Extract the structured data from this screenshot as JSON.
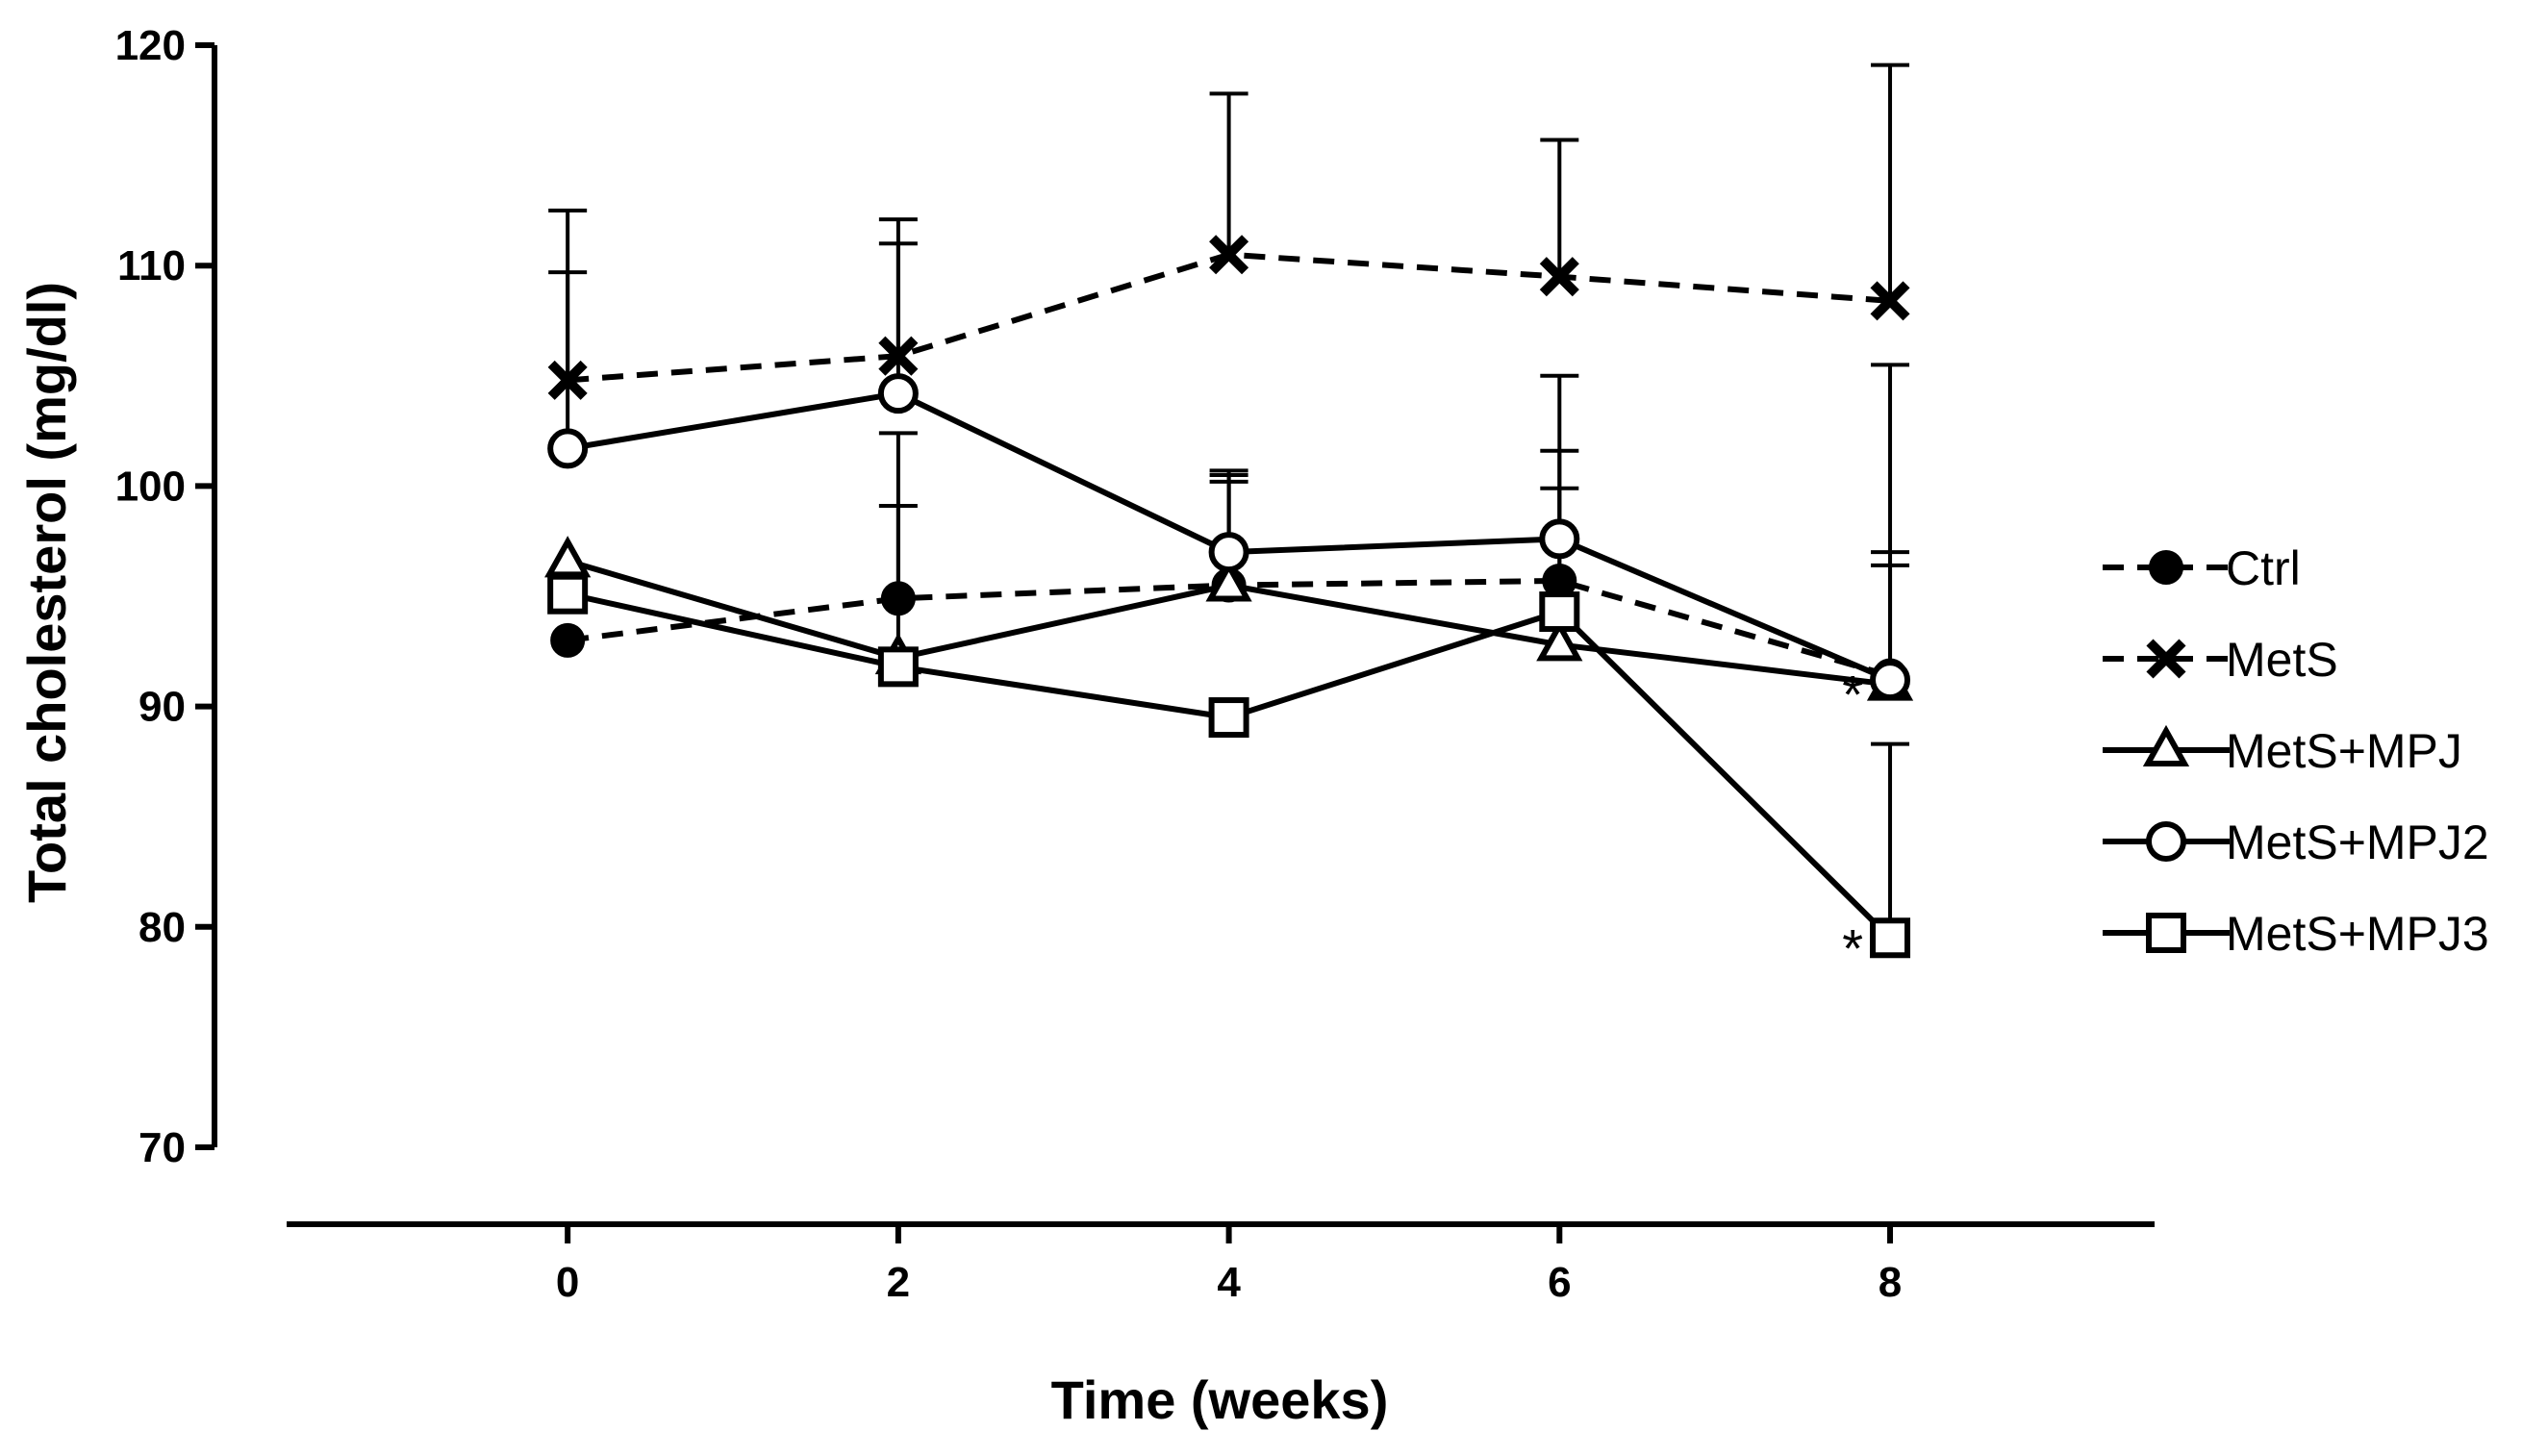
{
  "chart_data": {
    "type": "line",
    "title": "",
    "xlabel": "Time (weeks)",
    "ylabel": "Total cholesterol (mg/dl)",
    "x": [
      0,
      2,
      4,
      6,
      8
    ],
    "xlim": [
      -1.7,
      9.6
    ],
    "ylim": [
      70,
      120
    ],
    "xticks": [
      "0",
      "2",
      "4",
      "6",
      "8"
    ],
    "yticks": [
      "70",
      "80",
      "90",
      "100",
      "110",
      "120"
    ],
    "grid": false,
    "legend_position": "right",
    "series": [
      {
        "name": "Ctrl",
        "marker": "circle-filled",
        "line_style": "dashed",
        "values": [
          93.0,
          94.9,
          95.5,
          95.7,
          91.4
        ],
        "error_upper": [
          null,
          99.1,
          100.5,
          101.6,
          97.0
        ]
      },
      {
        "name": "MetS",
        "marker": "x",
        "line_style": "dashed",
        "values": [
          104.8,
          105.9,
          110.5,
          109.5,
          108.4
        ],
        "error_upper": [
          112.5,
          112.1,
          117.8,
          115.7,
          119.1
        ]
      },
      {
        "name": "MetS+MPJ",
        "marker": "triangle-open",
        "line_style": "solid",
        "values": [
          96.6,
          92.2,
          95.5,
          92.8,
          91.0
        ],
        "error_upper": [
          null,
          null,
          100.2,
          99.9,
          96.4
        ]
      },
      {
        "name": "MetS+MPJ2",
        "marker": "circle-open",
        "line_style": "solid",
        "values": [
          101.7,
          104.2,
          97.0,
          97.6,
          91.2
        ],
        "error_upper": [
          109.7,
          111.0,
          100.7,
          105.0,
          105.5
        ]
      },
      {
        "name": "MetS+MPJ3",
        "marker": "square-open",
        "line_style": "solid",
        "values": [
          95.1,
          91.8,
          89.5,
          94.3,
          79.5
        ],
        "error_upper": [
          null,
          102.4,
          null,
          null,
          88.3
        ]
      }
    ],
    "annotations": [
      {
        "text": "*",
        "x": 8,
        "y": 91.0
      },
      {
        "text": "*",
        "x": 8,
        "y": 79.5
      }
    ]
  }
}
